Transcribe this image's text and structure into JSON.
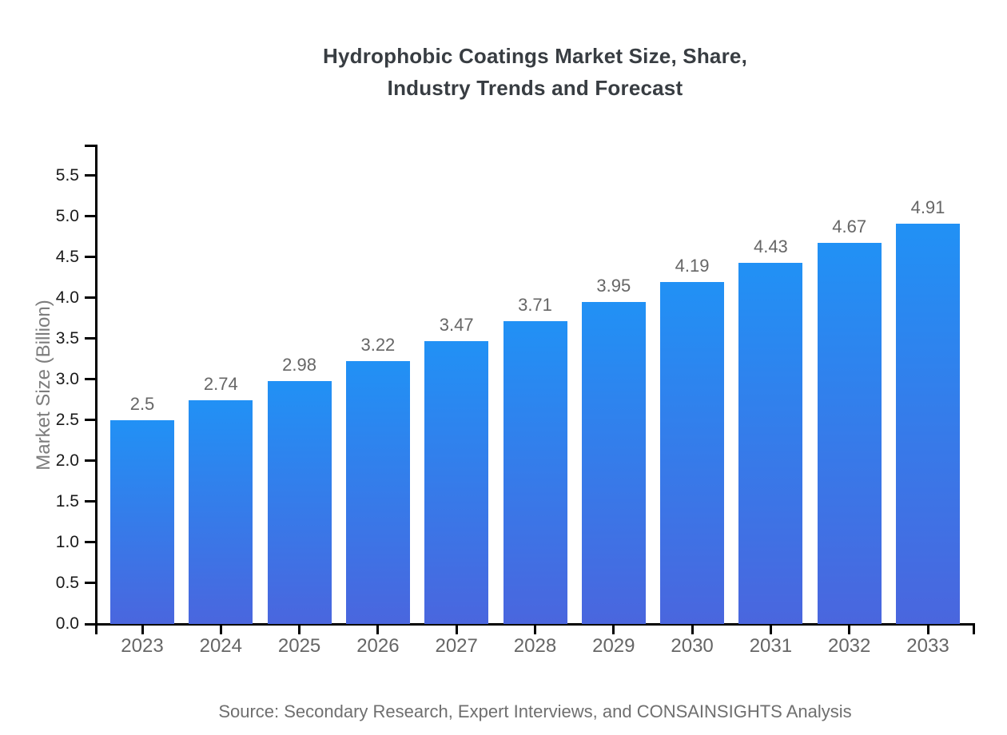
{
  "title": "Hydrophobic Coatings Market Size, Share,\nIndustry Trends and Forecast",
  "source": "Source: Secondary Research, Expert Interviews, and CONSAINSIGHTS Analysis",
  "colors": {
    "bar_gradient_top": "#2191f5",
    "bar_gradient_bottom": "#4a66de",
    "axis": "#000000",
    "title_text": "#383d42",
    "x_tick_text": "#666666",
    "y_tick_text": "#1a1a1a",
    "value_label_text": "#666666",
    "axis_label_text": "#7d7d7d",
    "source_text": "#6f6f6f"
  },
  "chart_data": {
    "type": "bar",
    "title": "Hydrophobic Coatings Market Size, Share,\nIndustry Trends and Forecast",
    "categories": [
      "2023",
      "2024",
      "2025",
      "2026",
      "2027",
      "2028",
      "2029",
      "2030",
      "2031",
      "2032",
      "2033"
    ],
    "values": [
      2.5,
      2.74,
      2.98,
      3.22,
      3.47,
      3.71,
      3.95,
      4.19,
      4.43,
      4.67,
      4.91
    ],
    "value_labels": [
      "2.5",
      "2.74",
      "2.98",
      "3.22",
      "3.47",
      "3.71",
      "3.95",
      "4.19",
      "4.43",
      "4.67",
      "4.91"
    ],
    "xlabel": "",
    "ylabel": "Market Size (Billion)",
    "ylim": [
      0,
      5.5
    ],
    "ytick_step": 0.5,
    "yticks": [
      "0.0",
      "0.5",
      "1.0",
      "1.5",
      "2.0",
      "2.5",
      "3.0",
      "3.5",
      "4.0",
      "4.5",
      "5.0",
      "5.5"
    ],
    "grid": false,
    "legend_position": "none",
    "bar_label_position": "above"
  }
}
